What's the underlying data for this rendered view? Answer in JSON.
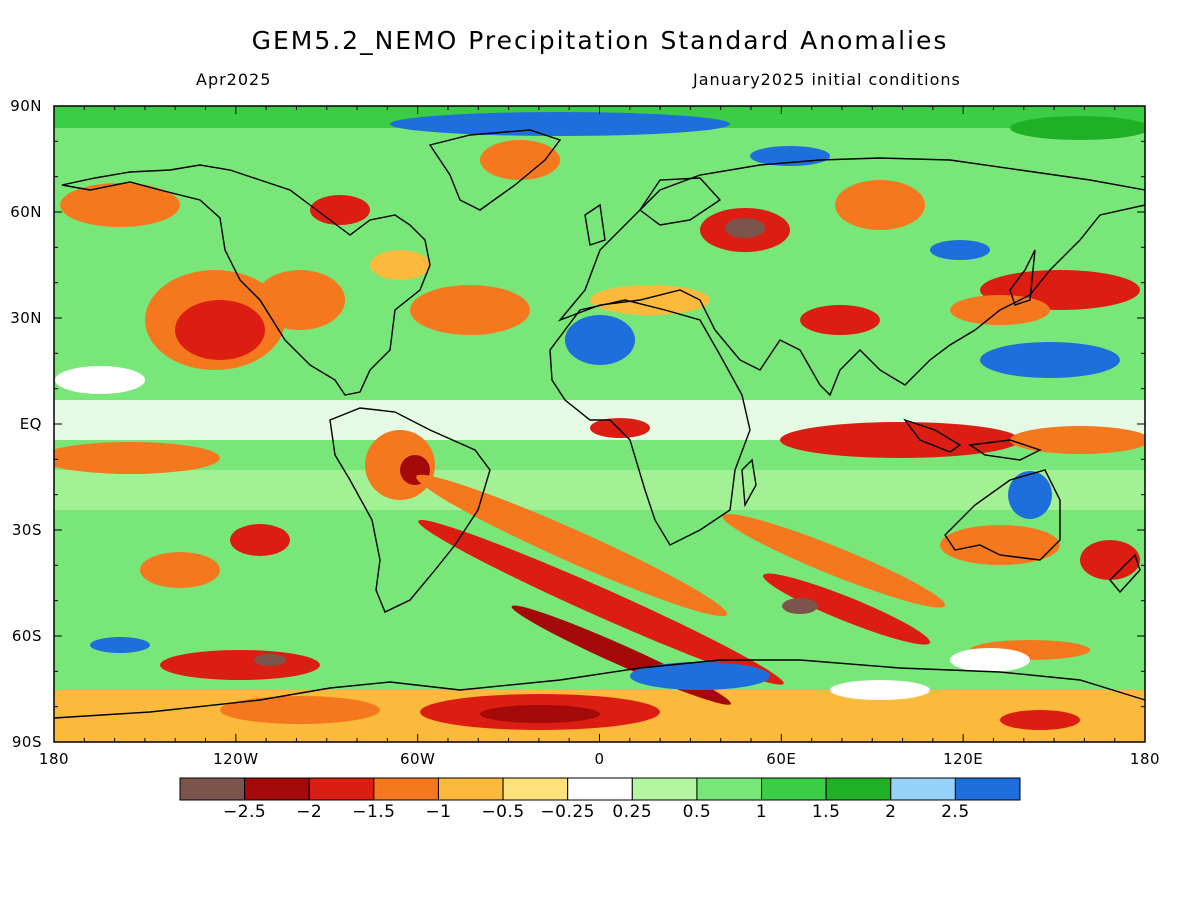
{
  "title": "GEM5.2_NEMO Precipitation Standard Anomalies",
  "valid_month": "Apr2025",
  "init_conditions": "January2025 initial conditions",
  "lat_labels": [
    "90N",
    "60N",
    "30N",
    "EQ",
    "30S",
    "60S",
    "90S"
  ],
  "lon_labels": [
    "180",
    "120W",
    "60W",
    "0",
    "60E",
    "120E",
    "180"
  ],
  "colorbar": {
    "colors": [
      "#7b554b",
      "#a50a0a",
      "#dc1e12",
      "#f5781e",
      "#fbba3c",
      "#fde27c",
      "#ffffff",
      "#b4f5a0",
      "#78e678",
      "#3ccd46",
      "#20b026",
      "#96d2fa",
      "#1e6edc"
    ],
    "labels": [
      "−2.5",
      "−2",
      "−1.5",
      "−1",
      "−0.5",
      "−0.25",
      "0.25",
      "0.5",
      "1",
      "1.5",
      "2",
      "2.5"
    ]
  },
  "map": {
    "land_outline_color": "#000000",
    "background": "#ffffff"
  }
}
